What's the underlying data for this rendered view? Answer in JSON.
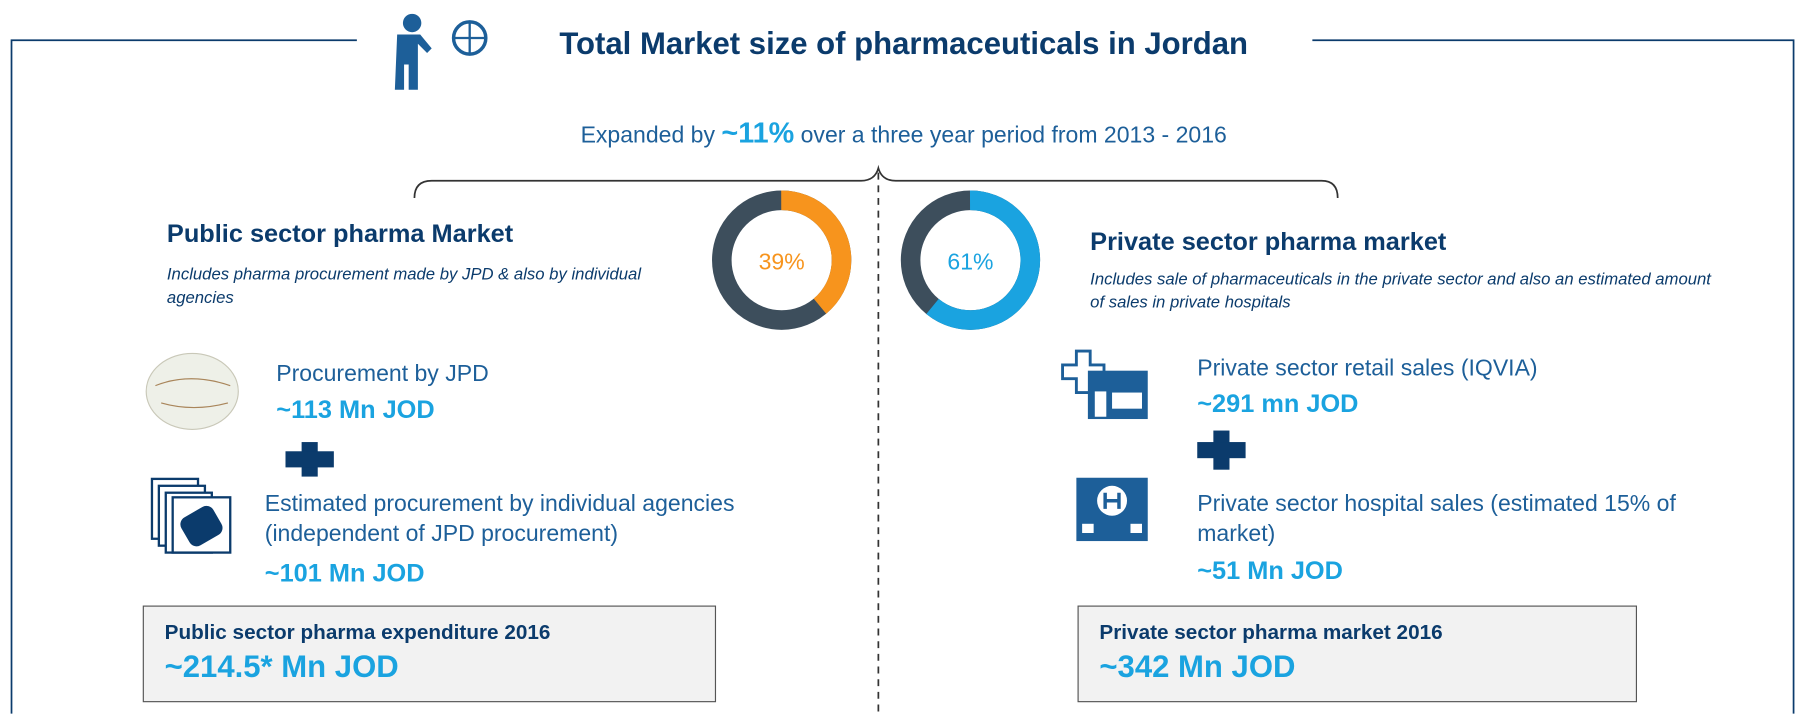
{
  "header": {
    "title": "Total Market size of pharmaceuticals in Jordan",
    "subtitle": {
      "before": "Expanded by",
      "highlight": "~11%",
      "after": "over a three year period from 2013 - 2016"
    }
  },
  "public": {
    "title": "Public sector pharma Market",
    "description": "Includes pharma procurement made by JPD & also by individual agencies",
    "share": {
      "value": 39,
      "label": "39%"
    },
    "items": [
      {
        "label": "Procurement by JPD",
        "value": "~113 Mn JOD"
      },
      {
        "label": "Estimated procurement by individual agencies (independent of JPD procurement)",
        "value": "~101 Mn JOD"
      }
    ],
    "total": {
      "label": "Public sector pharma expenditure 2016",
      "value": "~214.5* Mn JOD"
    }
  },
  "private": {
    "title": "Private sector pharma market",
    "description": "Includes sale of pharmaceuticals in the private sector and also an estimated amount of sales in private hospitals",
    "share": {
      "value": 61,
      "label": "61%"
    },
    "items": [
      {
        "label": "Private sector retail sales (IQVIA)",
        "value": "~291 mn JOD"
      },
      {
        "label": "Private sector hospital sales (estimated 15% of market)",
        "value": "~51 Mn JOD"
      }
    ],
    "total": {
      "label": "Private sector pharma market 2016",
      "value": "~342 Mn JOD"
    }
  }
}
